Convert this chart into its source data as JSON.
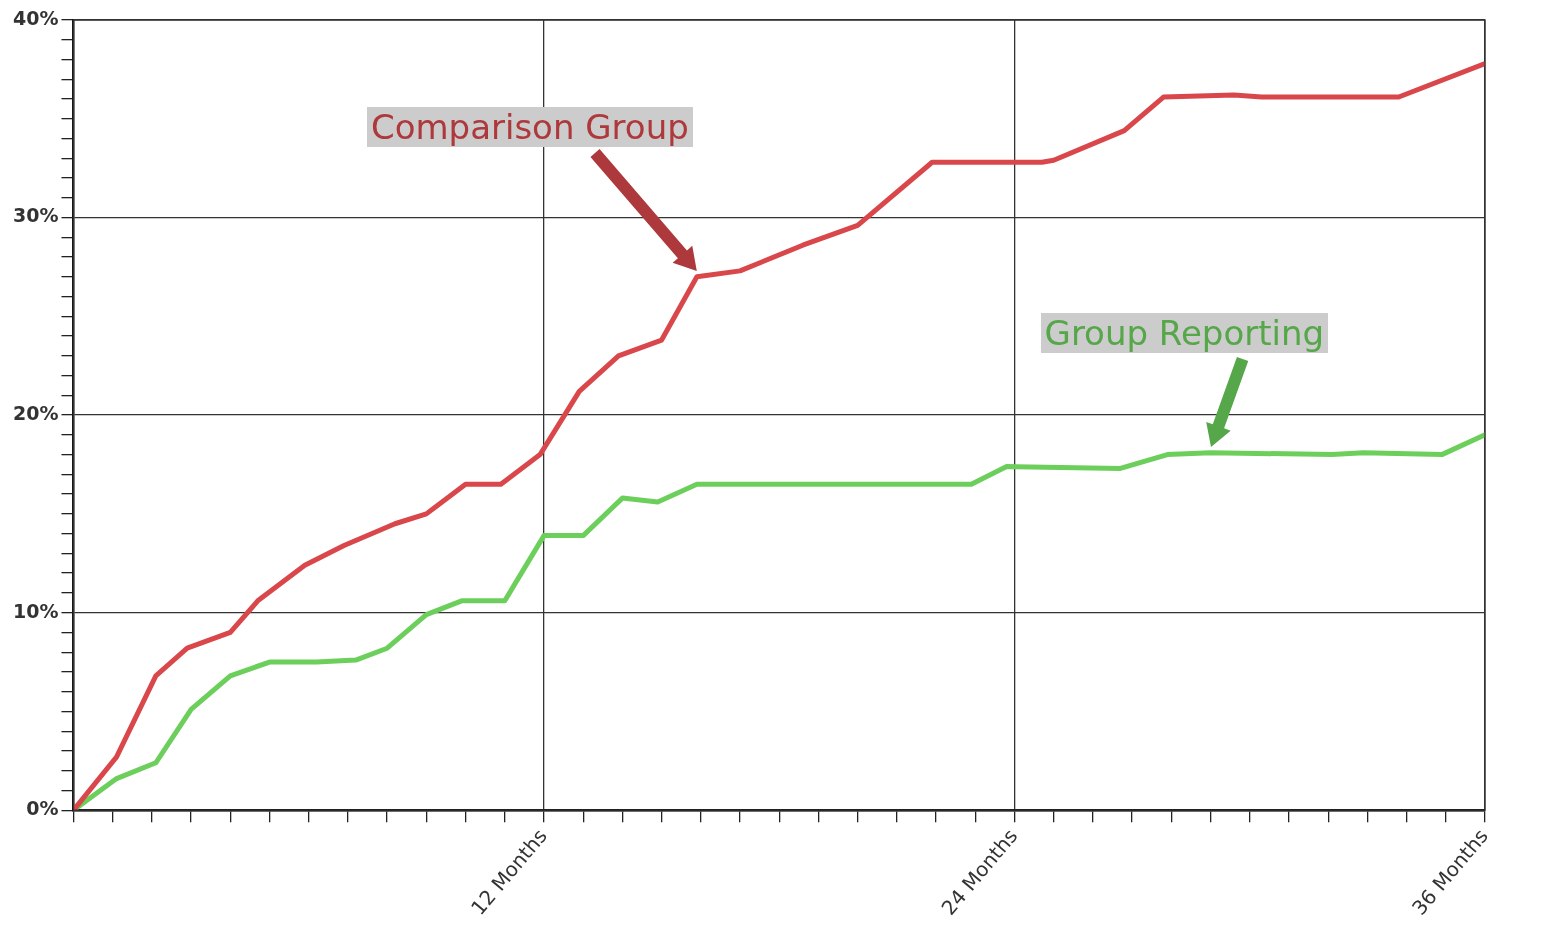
{
  "chart_data": {
    "type": "line",
    "xlim": [
      0,
      36
    ],
    "ylim": [
      0,
      40
    ],
    "xticks": [
      {
        "value": 0,
        "label": null
      },
      {
        "value": 1,
        "label": null
      },
      {
        "value": 2,
        "label": null
      },
      {
        "value": 3,
        "label": null
      },
      {
        "value": 4,
        "label": null
      },
      {
        "value": 5,
        "label": null
      },
      {
        "value": 6,
        "label": null
      },
      {
        "value": 7,
        "label": null
      },
      {
        "value": 8,
        "label": null
      },
      {
        "value": 9,
        "label": null
      },
      {
        "value": 10,
        "label": null
      },
      {
        "value": 11,
        "label": null
      },
      {
        "value": 12,
        "label": "12 Months"
      },
      {
        "value": 13,
        "label": null
      },
      {
        "value": 14,
        "label": null
      },
      {
        "value": 15,
        "label": null
      },
      {
        "value": 16,
        "label": null
      },
      {
        "value": 17,
        "label": null
      },
      {
        "value": 18,
        "label": null
      },
      {
        "value": 19,
        "label": null
      },
      {
        "value": 20,
        "label": null
      },
      {
        "value": 21,
        "label": null
      },
      {
        "value": 22,
        "label": null
      },
      {
        "value": 23,
        "label": null
      },
      {
        "value": 24,
        "label": "24 Months"
      },
      {
        "value": 25,
        "label": null
      },
      {
        "value": 26,
        "label": null
      },
      {
        "value": 27,
        "label": null
      },
      {
        "value": 28,
        "label": null
      },
      {
        "value": 29,
        "label": null
      },
      {
        "value": 30,
        "label": null
      },
      {
        "value": 31,
        "label": null
      },
      {
        "value": 32,
        "label": null
      },
      {
        "value": 33,
        "label": null
      },
      {
        "value": 34,
        "label": null
      },
      {
        "value": 35,
        "label": null
      },
      {
        "value": 36,
        "label": "36 Months"
      }
    ],
    "yticks": [
      {
        "value": 0,
        "label": "0%"
      },
      {
        "value": 1,
        "label": null
      },
      {
        "value": 2,
        "label": null
      },
      {
        "value": 3,
        "label": null
      },
      {
        "value": 4,
        "label": null
      },
      {
        "value": 5,
        "label": null
      },
      {
        "value": 6,
        "label": null
      },
      {
        "value": 7,
        "label": null
      },
      {
        "value": 8,
        "label": null
      },
      {
        "value": 9,
        "label": null
      },
      {
        "value": 10,
        "label": "10%"
      },
      {
        "value": 11,
        "label": null
      },
      {
        "value": 12,
        "label": null
      },
      {
        "value": 13,
        "label": null
      },
      {
        "value": 14,
        "label": null
      },
      {
        "value": 15,
        "label": null
      },
      {
        "value": 16,
        "label": null
      },
      {
        "value": 17,
        "label": null
      },
      {
        "value": 18,
        "label": null
      },
      {
        "value": 19,
        "label": null
      },
      {
        "value": 20,
        "label": "20%"
      },
      {
        "value": 21,
        "label": null
      },
      {
        "value": 22,
        "label": null
      },
      {
        "value": 23,
        "label": null
      },
      {
        "value": 24,
        "label": null
      },
      {
        "value": 25,
        "label": null
      },
      {
        "value": 26,
        "label": null
      },
      {
        "value": 27,
        "label": null
      },
      {
        "value": 28,
        "label": null
      },
      {
        "value": 29,
        "label": null
      },
      {
        "value": 30,
        "label": "30%"
      },
      {
        "value": 31,
        "label": null
      },
      {
        "value": 32,
        "label": null
      },
      {
        "value": 33,
        "label": null
      },
      {
        "value": 34,
        "label": null
      },
      {
        "value": 35,
        "label": null
      },
      {
        "value": 36,
        "label": null
      },
      {
        "value": 37,
        "label": null
      },
      {
        "value": 38,
        "label": null
      },
      {
        "value": 39,
        "label": null
      },
      {
        "value": 40,
        "label": "40%"
      }
    ],
    "grid": true,
    "legend": false,
    "series": [
      {
        "name": "Comparison Group",
        "color": "#d9474b",
        "x": [
          0,
          1.1,
          2.1,
          2.9,
          4.0,
          4.7,
          5.9,
          6.9,
          8.2,
          9.0,
          10.0,
          10.9,
          11.9,
          12.9,
          13.9,
          15.0,
          15.9,
          17.0,
          18.6,
          20.0,
          21.9,
          24.7,
          25.0,
          26.8,
          27.8,
          29.6,
          30.3,
          33.8,
          36.0
        ],
        "values": [
          0,
          2.7,
          6.8,
          8.2,
          9.0,
          10.6,
          12.4,
          13.4,
          14.5,
          15.0,
          16.5,
          16.5,
          18.0,
          21.2,
          23.0,
          23.8,
          27.0,
          27.3,
          28.6,
          29.6,
          32.8,
          32.8,
          32.9,
          34.4,
          36.1,
          36.2,
          36.1,
          36.1,
          37.8
        ]
      },
      {
        "name": "Group Reporting",
        "color": "#6ccf5c",
        "x": [
          0,
          1.1,
          2.1,
          3.0,
          4.0,
          5.0,
          6.2,
          7.2,
          8.0,
          9.0,
          9.9,
          11.0,
          12.0,
          13.0,
          14.0,
          14.9,
          15.9,
          22.9,
          23.8,
          26.7,
          27.9,
          29.0,
          32.1,
          32.9,
          34.9,
          36.0
        ],
        "values": [
          0,
          1.6,
          2.4,
          5.1,
          6.8,
          7.5,
          7.5,
          7.6,
          8.2,
          9.9,
          10.6,
          10.6,
          13.9,
          13.9,
          15.8,
          15.6,
          16.5,
          16.5,
          17.4,
          17.3,
          18.0,
          18.1,
          18.0,
          18.1,
          18.0,
          19.0
        ]
      }
    ]
  }
}
